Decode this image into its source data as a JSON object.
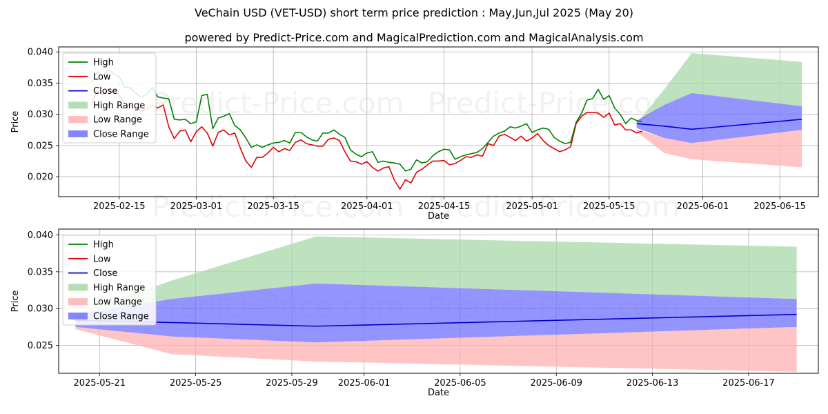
{
  "title": "VeChain USD (VET-USD) short term price prediction : May,Jun,Jul 2025 (May 20)",
  "subtitle": "powered by Predict-Price.com and MagicalPrediction.com and MagicalAnalysis.com",
  "watermark": "Predict-Price.com",
  "colors": {
    "high": "#008000",
    "low": "#e00000",
    "close": "#0000cc",
    "high_range": "#a8d8a8",
    "low_range": "#ffb0b0",
    "close_range": "#7070ff"
  },
  "chart_data": [
    {
      "type": "line",
      "xlabel": "Date",
      "ylabel": "Price",
      "xlim": [
        "2025-02-04",
        "2025-06-22"
      ],
      "ylim": [
        0.0168,
        0.0408
      ],
      "grid": true,
      "legend_placement": "top-left",
      "legend": [
        "High",
        "Low",
        "Close",
        "High Range",
        "Low Range",
        "Close Range"
      ],
      "x_ticks": [
        {
          "date": "2025-02-15",
          "label": "2025-02-15"
        },
        {
          "date": "2025-03-01",
          "label": "2025-03-01"
        },
        {
          "date": "2025-03-15",
          "label": "2025-03-15"
        },
        {
          "date": "2025-04-01",
          "label": "2025-04-01"
        },
        {
          "date": "2025-04-15",
          "label": "2025-04-15"
        },
        {
          "date": "2025-05-01",
          "label": "2025-05-01"
        },
        {
          "date": "2025-05-15",
          "label": "2025-05-15"
        },
        {
          "date": "2025-06-01",
          "label": "2025-06-01"
        },
        {
          "date": "2025-06-15",
          "label": "2025-06-15"
        }
      ],
      "y_ticks": [
        {
          "value": 0.02,
          "label": "0.020"
        },
        {
          "value": 0.025,
          "label": "0.025"
        },
        {
          "value": 0.03,
          "label": "0.030"
        },
        {
          "value": 0.035,
          "label": "0.035"
        },
        {
          "value": 0.04,
          "label": "0.040"
        }
      ],
      "history": {
        "start": "2025-02-10",
        "high": [
          0.0351,
          0.0368,
          0.0362,
          0.0371,
          0.0365,
          0.036,
          0.0344,
          0.0342,
          0.0334,
          0.0328,
          0.0332,
          0.0343,
          0.0328,
          0.0326,
          0.0325,
          0.0292,
          0.0291,
          0.0292,
          0.0285,
          0.0288,
          0.033,
          0.0332,
          0.0277,
          0.0294,
          0.0297,
          0.0301,
          0.0282,
          0.0275,
          0.0262,
          0.0247,
          0.0251,
          0.0247,
          0.0251,
          0.0254,
          0.0255,
          0.0258,
          0.0254,
          0.0271,
          0.0271,
          0.0264,
          0.0259,
          0.0257,
          0.027,
          0.027,
          0.0275,
          0.0268,
          0.0263,
          0.0243,
          0.0236,
          0.0232,
          0.0238,
          0.024,
          0.0223,
          0.0225,
          0.0223,
          0.0222,
          0.022,
          0.0209,
          0.0212,
          0.0227,
          0.0222,
          0.0224,
          0.0234,
          0.024,
          0.0244,
          0.0243,
          0.0228,
          0.0232,
          0.0235,
          0.0237,
          0.0239,
          0.0245,
          0.0255,
          0.0265,
          0.027,
          0.0273,
          0.028,
          0.0278,
          0.0281,
          0.0285,
          0.0271,
          0.0275,
          0.0278,
          0.0276,
          0.0263,
          0.0257,
          0.0253,
          0.0255,
          0.0287,
          0.0302,
          0.0323,
          0.0325,
          0.034,
          0.0324,
          0.033,
          0.031,
          0.03,
          0.0285,
          0.0294,
          0.029,
          0.0288
        ],
        "low": [
          0.0318,
          0.0337,
          0.0331,
          0.034,
          0.0335,
          0.0331,
          0.0318,
          0.0314,
          0.0309,
          0.0305,
          0.0308,
          0.0315,
          0.031,
          0.0315,
          0.028,
          0.0261,
          0.0273,
          0.0275,
          0.0256,
          0.0272,
          0.028,
          0.027,
          0.0249,
          0.0271,
          0.0275,
          0.0267,
          0.027,
          0.0246,
          0.0225,
          0.0215,
          0.0231,
          0.0231,
          0.0238,
          0.0247,
          0.024,
          0.0245,
          0.0242,
          0.0255,
          0.0259,
          0.0253,
          0.0251,
          0.0249,
          0.0249,
          0.026,
          0.0262,
          0.0258,
          0.024,
          0.0225,
          0.0224,
          0.022,
          0.0224,
          0.0215,
          0.0209,
          0.0214,
          0.0216,
          0.0194,
          0.018,
          0.0195,
          0.019,
          0.0207,
          0.0212,
          0.0219,
          0.0225,
          0.0225,
          0.0226,
          0.0219,
          0.0221,
          0.0226,
          0.0232,
          0.0231,
          0.0235,
          0.0233,
          0.0253,
          0.025,
          0.0265,
          0.0268,
          0.0263,
          0.0258,
          0.0265,
          0.0257,
          0.0262,
          0.0269,
          0.0258,
          0.025,
          0.0245,
          0.024,
          0.0243,
          0.0248,
          0.0285,
          0.0297,
          0.0303,
          0.0303,
          0.0302,
          0.0295,
          0.0302,
          0.0283,
          0.0285,
          0.0275,
          0.0275,
          0.027,
          0.0273
        ]
      },
      "forecast": {
        "dates": [
          "2025-05-20",
          "2025-05-25",
          "2025-05-30",
          "2025-06-19"
        ],
        "high_range_upper": [
          0.0285,
          0.034,
          0.0398,
          0.0384
        ],
        "high_range_lower": [
          0.0285,
          0.0315,
          0.0334,
          0.0313
        ],
        "close_range_upper": [
          0.029,
          0.0315,
          0.0334,
          0.0313
        ],
        "close_range_lower": [
          0.0278,
          0.0262,
          0.0254,
          0.0275
        ],
        "low_range_upper": [
          0.0276,
          0.0262,
          0.0254,
          0.0275
        ],
        "low_range_lower": [
          0.0272,
          0.0238,
          0.0228,
          0.0215
        ],
        "close": [
          0.0285,
          0.0281,
          0.0276,
          0.0292
        ]
      }
    },
    {
      "type": "line",
      "xlabel": "Date",
      "ylabel": "Price",
      "xlim": [
        "2025-05-19.3",
        "2025-06-19.9"
      ],
      "ylim": [
        0.0212,
        0.0408
      ],
      "grid": true,
      "legend_placement": "top-left",
      "legend": [
        "High",
        "Low",
        "Close",
        "High Range",
        "Low Range",
        "Close Range"
      ],
      "x_ticks": [
        {
          "date": "2025-05-21",
          "label": "2025-05-21"
        },
        {
          "date": "2025-05-25",
          "label": "2025-05-25"
        },
        {
          "date": "2025-05-29",
          "label": "2025-05-29"
        },
        {
          "date": "2025-06-01",
          "label": "2025-06-01"
        },
        {
          "date": "2025-06-05",
          "label": "2025-06-05"
        },
        {
          "date": "2025-06-09",
          "label": "2025-06-09"
        },
        {
          "date": "2025-06-13",
          "label": "2025-06-13"
        },
        {
          "date": "2025-06-17",
          "label": "2025-06-17"
        }
      ],
      "y_ticks": [
        {
          "value": 0.025,
          "label": "0.025"
        },
        {
          "value": 0.03,
          "label": "0.030"
        },
        {
          "value": 0.035,
          "label": "0.035"
        },
        {
          "value": 0.04,
          "label": "0.040"
        }
      ],
      "forecast": {
        "dates": [
          "2025-05-20",
          "2025-05-24",
          "2025-05-30",
          "2025-06-19"
        ],
        "high_range_upper": [
          0.0292,
          0.0338,
          0.0398,
          0.0384
        ],
        "high_range_lower": [
          0.0292,
          0.0313,
          0.0334,
          0.0313
        ],
        "close_range_upper": [
          0.0292,
          0.0313,
          0.0334,
          0.0313
        ],
        "close_range_lower": [
          0.0275,
          0.0262,
          0.0254,
          0.0275
        ],
        "low_range_upper": [
          0.0275,
          0.0262,
          0.0254,
          0.0275
        ],
        "low_range_lower": [
          0.0272,
          0.0238,
          0.0228,
          0.0214
        ],
        "close": [
          0.0284,
          0.0281,
          0.0276,
          0.0292
        ]
      }
    }
  ]
}
